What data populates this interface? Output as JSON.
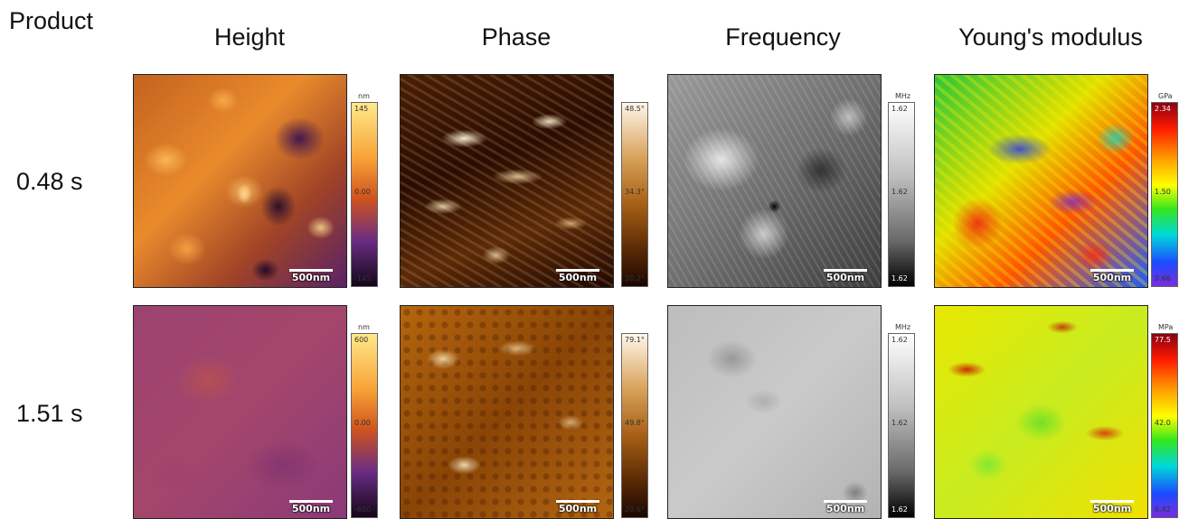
{
  "figure": {
    "corner_label": "Product",
    "columns": [
      "Height",
      "Phase",
      "Frequency",
      "Young's modulus"
    ],
    "rows": [
      "0.48 s",
      "1.51 s"
    ],
    "scale_bar_label": "500nm"
  },
  "panels": [
    [
      {
        "name": "height",
        "unit": "nm",
        "ticks": [
          "145",
          "0.00",
          "-145"
        ],
        "colormap": "afmhot-purple"
      },
      {
        "name": "phase",
        "unit": "",
        "ticks": [
          "48.5°",
          "34.3°",
          "20.2°"
        ],
        "colormap": "copper"
      },
      {
        "name": "frequency",
        "unit": "MHz",
        "ticks": [
          "1.62",
          "1.62",
          "1.62"
        ],
        "colormap": "gray"
      },
      {
        "name": "youngs-modulus",
        "unit": "GPa",
        "ticks": [
          "2.34",
          "1.50",
          "0.66"
        ],
        "colormap": "rainbow"
      }
    ],
    [
      {
        "name": "height",
        "unit": "nm",
        "ticks": [
          "600",
          "0.00",
          "-600"
        ],
        "colormap": "afmhot-purple"
      },
      {
        "name": "phase",
        "unit": "",
        "ticks": [
          "79.1°",
          "49.8°",
          "20.6°"
        ],
        "colormap": "copper"
      },
      {
        "name": "frequency",
        "unit": "MHz",
        "ticks": [
          "1.62",
          "1.62",
          "1.62"
        ],
        "colormap": "gray"
      },
      {
        "name": "youngs-modulus",
        "unit": "MPa",
        "ticks": [
          "77.5",
          "42.0",
          "6.42"
        ],
        "colormap": "rainbow"
      }
    ]
  ]
}
